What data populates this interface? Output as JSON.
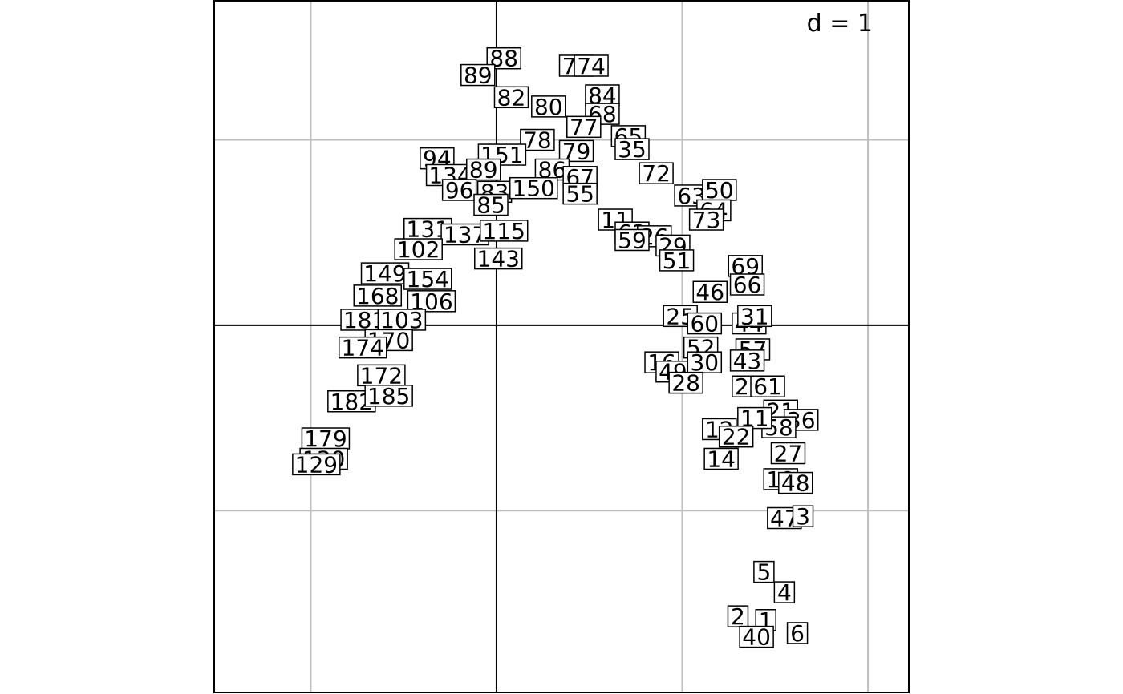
{
  "chart_data": {
    "type": "scatter",
    "title": "",
    "scale_label": "d = 1",
    "grid": true,
    "grid_step": 1,
    "xlim": [
      -1.52,
      2.22
    ],
    "ylim": [
      -1.98,
      1.75
    ],
    "axes_at_origin": true,
    "points": [
      {
        "label": "88",
        "x": 0.04,
        "y": 1.44
      },
      {
        "label": "89",
        "x": -0.1,
        "y": 1.35
      },
      {
        "label": "82",
        "x": 0.08,
        "y": 1.23
      },
      {
        "label": "80",
        "x": 0.28,
        "y": 1.18
      },
      {
        "label": "75",
        "x": 0.43,
        "y": 1.4
      },
      {
        "label": "74",
        "x": 0.51,
        "y": 1.4
      },
      {
        "label": "84",
        "x": 0.57,
        "y": 1.24
      },
      {
        "label": "68",
        "x": 0.57,
        "y": 1.14
      },
      {
        "label": "77",
        "x": 0.47,
        "y": 1.07
      },
      {
        "label": "65",
        "x": 0.71,
        "y": 1.02
      },
      {
        "label": "35",
        "x": 0.73,
        "y": 0.95
      },
      {
        "label": "78",
        "x": 0.22,
        "y": 1.0
      },
      {
        "label": "79",
        "x": 0.43,
        "y": 0.94
      },
      {
        "label": "151",
        "x": 0.03,
        "y": 0.92
      },
      {
        "label": "94",
        "x": -0.32,
        "y": 0.9
      },
      {
        "label": "134",
        "x": -0.25,
        "y": 0.81
      },
      {
        "label": "89",
        "x": -0.07,
        "y": 0.84
      },
      {
        "label": "86",
        "x": 0.3,
        "y": 0.84
      },
      {
        "label": "67",
        "x": 0.45,
        "y": 0.8
      },
      {
        "label": "72",
        "x": 0.86,
        "y": 0.82
      },
      {
        "label": "96",
        "x": -0.2,
        "y": 0.73
      },
      {
        "label": "83",
        "x": -0.01,
        "y": 0.72
      },
      {
        "label": "150",
        "x": 0.2,
        "y": 0.74
      },
      {
        "label": "55",
        "x": 0.45,
        "y": 0.71
      },
      {
        "label": "63",
        "x": 1.05,
        "y": 0.7
      },
      {
        "label": "50",
        "x": 1.2,
        "y": 0.73
      },
      {
        "label": "64",
        "x": 1.17,
        "y": 0.62
      },
      {
        "label": "73",
        "x": 1.13,
        "y": 0.57
      },
      {
        "label": "85",
        "x": -0.03,
        "y": 0.65
      },
      {
        "label": "11",
        "x": 0.64,
        "y": 0.57
      },
      {
        "label": "62",
        "x": 0.73,
        "y": 0.5
      },
      {
        "label": "26",
        "x": 0.85,
        "y": 0.48
      },
      {
        "label": "59",
        "x": 0.73,
        "y": 0.46
      },
      {
        "label": "29",
        "x": 0.95,
        "y": 0.43
      },
      {
        "label": "51",
        "x": 0.97,
        "y": 0.35
      },
      {
        "label": "131",
        "x": -0.37,
        "y": 0.52
      },
      {
        "label": "137",
        "x": -0.17,
        "y": 0.49
      },
      {
        "label": "115",
        "x": 0.04,
        "y": 0.51
      },
      {
        "label": "102",
        "x": -0.42,
        "y": 0.41
      },
      {
        "label": "143",
        "x": 0.01,
        "y": 0.36
      },
      {
        "label": "149",
        "x": -0.6,
        "y": 0.28
      },
      {
        "label": "154",
        "x": -0.37,
        "y": 0.25
      },
      {
        "label": "168",
        "x": -0.64,
        "y": 0.16
      },
      {
        "label": "106",
        "x": -0.35,
        "y": 0.13
      },
      {
        "label": "69",
        "x": 1.34,
        "y": 0.32
      },
      {
        "label": "66",
        "x": 1.35,
        "y": 0.22
      },
      {
        "label": "46",
        "x": 1.15,
        "y": 0.18
      },
      {
        "label": "25",
        "x": 0.99,
        "y": 0.05
      },
      {
        "label": "60",
        "x": 1.12,
        "y": 0.01
      },
      {
        "label": "44",
        "x": 1.36,
        "y": 0.01
      },
      {
        "label": "31",
        "x": 1.39,
        "y": 0.05
      },
      {
        "label": "181",
        "x": -0.71,
        "y": 0.03
      },
      {
        "label": "103",
        "x": -0.51,
        "y": 0.03
      },
      {
        "label": "52",
        "x": 1.1,
        "y": -0.12
      },
      {
        "label": "57",
        "x": 1.38,
        "y": -0.13
      },
      {
        "label": "170",
        "x": -0.58,
        "y": -0.08
      },
      {
        "label": "174",
        "x": -0.72,
        "y": -0.12
      },
      {
        "label": "16",
        "x": 0.89,
        "y": -0.2
      },
      {
        "label": "49",
        "x": 0.95,
        "y": -0.25
      },
      {
        "label": "30",
        "x": 1.12,
        "y": -0.2
      },
      {
        "label": "43",
        "x": 1.35,
        "y": -0.19
      },
      {
        "label": "28",
        "x": 1.02,
        "y": -0.31
      },
      {
        "label": "172",
        "x": -0.62,
        "y": -0.27
      },
      {
        "label": "26",
        "x": 1.36,
        "y": -0.33
      },
      {
        "label": "61",
        "x": 1.46,
        "y": -0.33
      },
      {
        "label": "182",
        "x": -0.78,
        "y": -0.41
      },
      {
        "label": "185",
        "x": -0.58,
        "y": -0.38
      },
      {
        "label": "21",
        "x": 1.53,
        "y": -0.46
      },
      {
        "label": "36",
        "x": 1.64,
        "y": -0.51
      },
      {
        "label": "58",
        "x": 1.52,
        "y": -0.55
      },
      {
        "label": "11",
        "x": 1.39,
        "y": -0.5
      },
      {
        "label": "12",
        "x": 1.2,
        "y": -0.56
      },
      {
        "label": "22",
        "x": 1.29,
        "y": -0.6
      },
      {
        "label": "14",
        "x": 1.21,
        "y": -0.72
      },
      {
        "label": "27",
        "x": 1.57,
        "y": -0.69
      },
      {
        "label": "179",
        "x": -0.92,
        "y": -0.61
      },
      {
        "label": "130",
        "x": -0.93,
        "y": -0.72
      },
      {
        "label": "129",
        "x": -0.97,
        "y": -0.75
      },
      {
        "label": "19",
        "x": 1.53,
        "y": -0.83
      },
      {
        "label": "48",
        "x": 1.61,
        "y": -0.85
      },
      {
        "label": "47",
        "x": 1.55,
        "y": -1.04
      },
      {
        "label": "3",
        "x": 1.65,
        "y": -1.03
      },
      {
        "label": "5",
        "x": 1.44,
        "y": -1.33
      },
      {
        "label": "4",
        "x": 1.55,
        "y": -1.44
      },
      {
        "label": "2",
        "x": 1.3,
        "y": -1.57
      },
      {
        "label": "1",
        "x": 1.45,
        "y": -1.59
      },
      {
        "label": "40",
        "x": 1.4,
        "y": -1.68
      },
      {
        "label": "6",
        "x": 1.62,
        "y": -1.66
      }
    ]
  }
}
